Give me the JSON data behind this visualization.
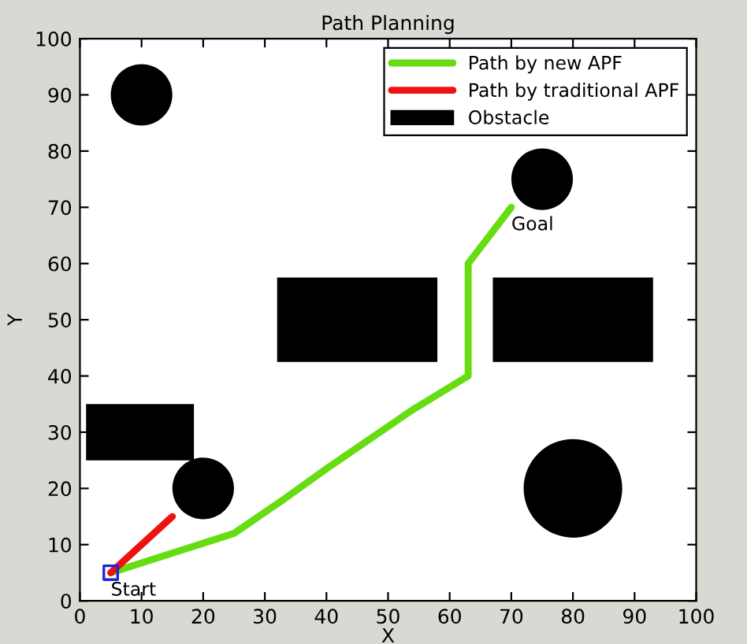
{
  "chart_data": {
    "type": "line",
    "title": "Path Planning",
    "xlabel": "X",
    "ylabel": "Y",
    "xlim": [
      0,
      100
    ],
    "ylim": [
      0,
      100
    ],
    "xticks": [
      0,
      10,
      20,
      30,
      40,
      50,
      60,
      70,
      80,
      90,
      100
    ],
    "yticks": [
      0,
      10,
      20,
      30,
      40,
      50,
      60,
      70,
      80,
      90,
      100
    ],
    "grid": false,
    "legend": "top right",
    "series": [
      {
        "name": "Path by new APF",
        "color": "#66dd11",
        "x": [
          5,
          25,
          33,
          40,
          54,
          63,
          63,
          70
        ],
        "values": [
          5,
          12,
          18,
          23.5,
          34,
          40,
          60,
          70
        ]
      },
      {
        "name": "Path by traditional APF",
        "color": "#ee1111",
        "x": [
          5,
          15
        ],
        "values": [
          5,
          15
        ]
      },
      {
        "name": "Obstacle",
        "type": "area",
        "color": "#000000",
        "x": [
          32,
          58,
          58,
          32,
          null,
          67,
          93,
          93,
          67,
          null,
          1,
          18.5,
          18.5,
          1
        ],
        "values": [
          42.5,
          42.5,
          57.5,
          57.5,
          null,
          42.5,
          42.5,
          57.5,
          57.5,
          null,
          25,
          25,
          35,
          35
        ]
      },
      {
        "type": "bubble",
        "color": "#000000",
        "x": [
          10,
          75,
          20,
          80
        ],
        "values": [
          90,
          75,
          20,
          20
        ],
        "sizes": [
          0.39,
          0.39,
          0.39,
          1
        ]
      },
      {
        "type": "scatter",
        "color": "#2222dd",
        "marker": "square",
        "x": [
          5
        ],
        "values": [
          5
        ]
      }
    ],
    "annotations": [
      {
        "text": "Start",
        "x": 5,
        "y": 5
      },
      {
        "text": "Goal",
        "x": 70,
        "y": 70
      }
    ]
  }
}
